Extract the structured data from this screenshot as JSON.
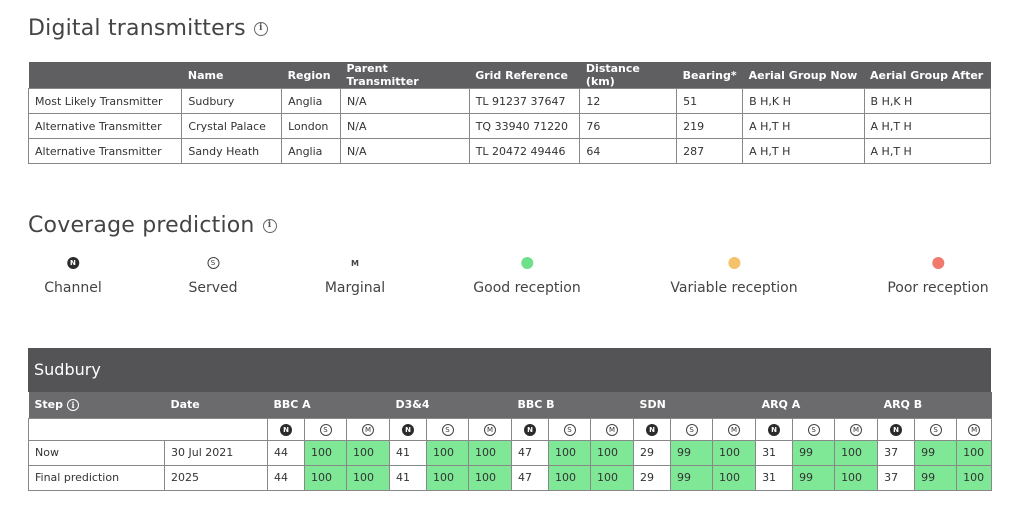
{
  "transmitters": {
    "title": "Digital transmitters",
    "info_glyph": "i",
    "columns": [
      "",
      "Name",
      "Region",
      "Parent Transmitter",
      "Grid Reference",
      "Distance (km)",
      "Bearing*",
      "Aerial Group Now",
      "Aerial Group After"
    ],
    "rows": [
      [
        "Most Likely Transmitter",
        "Sudbury",
        "Anglia",
        "N/A",
        "TL 91237 37647",
        "12",
        "51",
        "B H,K H",
        "B H,K H"
      ],
      [
        "Alternative Transmitter",
        "Crystal Palace",
        "London",
        "N/A",
        "TQ 33940 71220",
        "76",
        "219",
        "A H,T H",
        "A H,T H"
      ],
      [
        "Alternative Transmitter",
        "Sandy Heath",
        "Anglia",
        "N/A",
        "TL 20472 49446",
        "64",
        "287",
        "A H,T H",
        "A H,T H"
      ]
    ]
  },
  "coverage": {
    "title": "Coverage prediction",
    "info_glyph": "i",
    "legend": [
      {
        "label": "Channel",
        "glyph": "N",
        "kind": "solid-badge"
      },
      {
        "label": "Served",
        "glyph": "S",
        "kind": "outline-badge"
      },
      {
        "label": "Marginal",
        "glyph": "M",
        "kind": "plain-letter"
      },
      {
        "label": "Good reception",
        "kind": "dot",
        "color": "#6fe08a"
      },
      {
        "label": "Variable reception",
        "kind": "dot",
        "color": "#f5c26b"
      },
      {
        "label": "Poor reception",
        "kind": "dot",
        "color": "#f07a6e"
      }
    ],
    "panel_title": "Sudbury",
    "step_label": "Step",
    "date_label": "Date",
    "groups": [
      "BBC A",
      "D3&4",
      "BBC B",
      "SDN",
      "ARQ A",
      "ARQ B"
    ],
    "icon_glyphs": [
      "N",
      "S",
      "M"
    ],
    "rows": [
      {
        "step": "Now",
        "date": "30 Jul 2021",
        "values": [
          [
            "44",
            "100",
            "100"
          ],
          [
            "41",
            "100",
            "100"
          ],
          [
            "47",
            "100",
            "100"
          ],
          [
            "29",
            "99",
            "100"
          ],
          [
            "31",
            "99",
            "100"
          ],
          [
            "37",
            "99",
            "100"
          ]
        ]
      },
      {
        "step": "Final prediction",
        "date": "2025",
        "values": [
          [
            "44",
            "100",
            "100"
          ],
          [
            "41",
            "100",
            "100"
          ],
          [
            "47",
            "100",
            "100"
          ],
          [
            "29",
            "99",
            "100"
          ],
          [
            "31",
            "99",
            "100"
          ],
          [
            "37",
            "99",
            "100"
          ]
        ]
      }
    ]
  }
}
